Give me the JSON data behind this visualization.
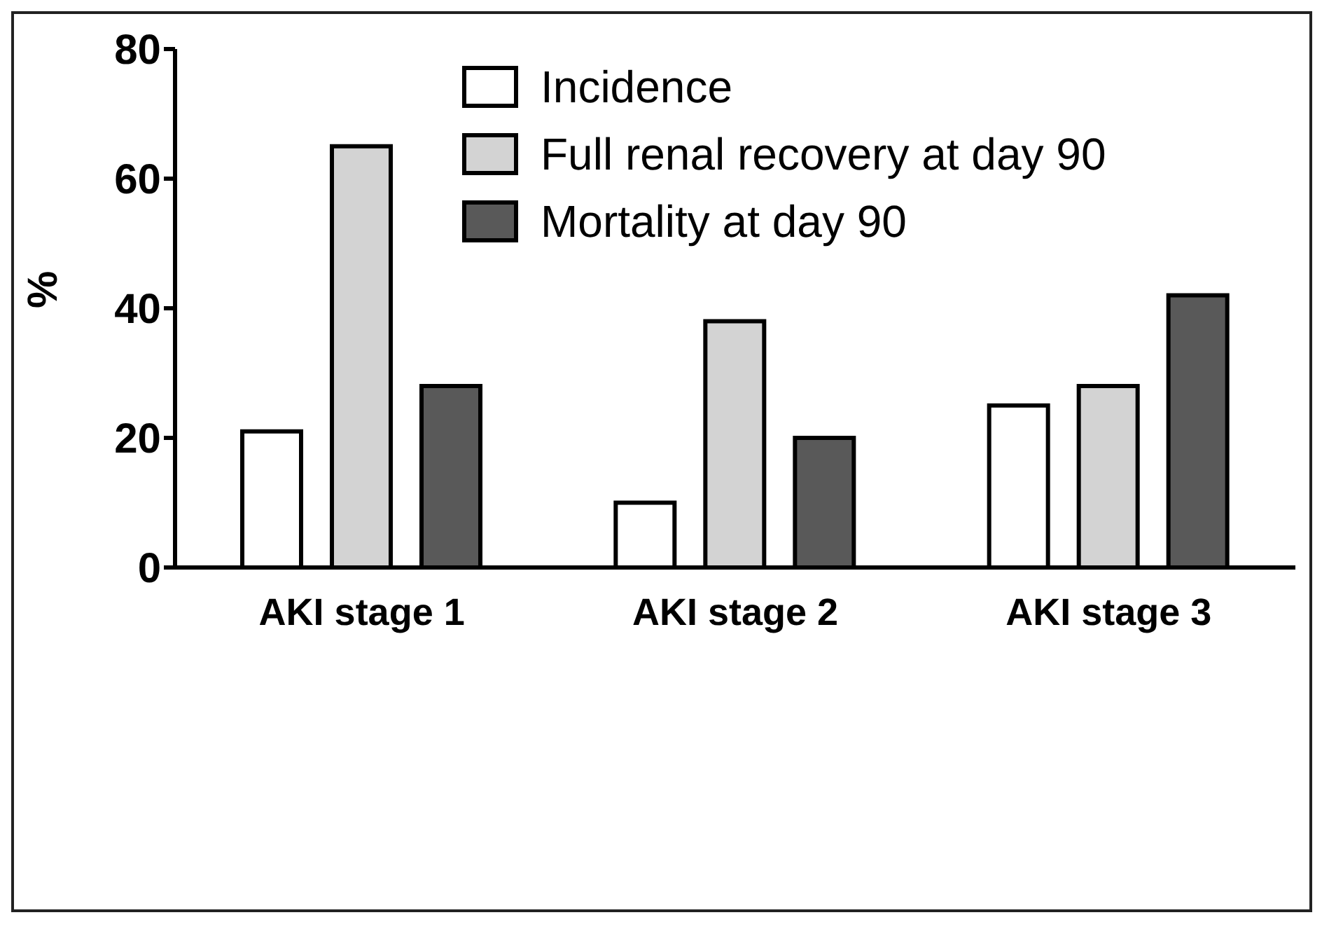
{
  "chart_data": {
    "type": "bar",
    "ylabel": "%",
    "categories": [
      "AKI stage 1",
      "AKI stage 2",
      "AKI stage 3"
    ],
    "series": [
      {
        "name": "Incidence",
        "color": "#ffffff",
        "values": [
          21,
          10,
          25
        ]
      },
      {
        "name": "Full renal recovery at day 90",
        "color": "#d3d3d3",
        "values": [
          65,
          38,
          28
        ]
      },
      {
        "name": "Mortality at day 90",
        "color": "#595959",
        "values": [
          28,
          20,
          42
        ]
      }
    ],
    "ylim": [
      0,
      80
    ],
    "yticks": [
      0,
      20,
      40,
      60,
      80
    ],
    "grid": false,
    "legend": "top"
  }
}
